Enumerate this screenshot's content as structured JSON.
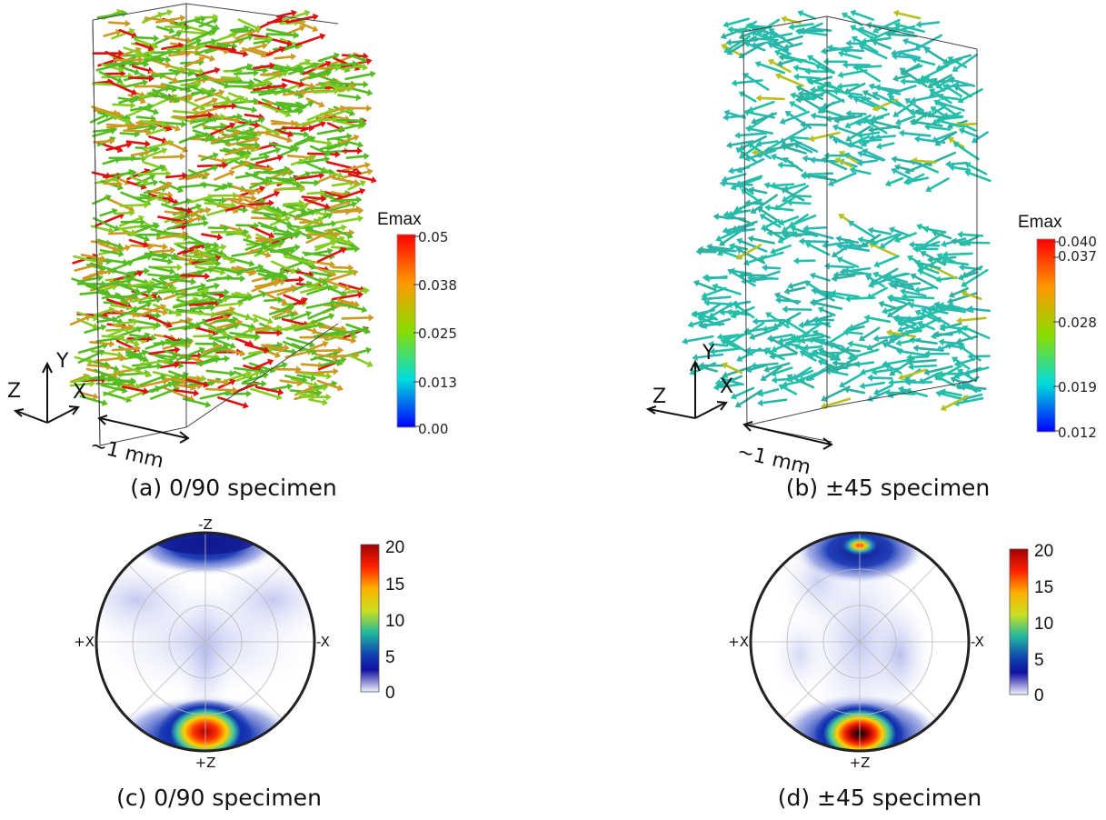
{
  "panel_a": {
    "axes": {
      "y": "Y",
      "x": "X",
      "z": "Z"
    },
    "scale_label": "~1 mm",
    "colorbar": {
      "title": "Emax",
      "min": 0.0,
      "max": 0.05,
      "ticks": [
        "0.05",
        "0.038",
        "0.025",
        "0.013",
        "0.00"
      ],
      "colors": [
        "#ff0000",
        "#ff9900",
        "#88dd00",
        "#00dddd",
        "#0000ff"
      ]
    },
    "caption": "(a) 0/90 specimen"
  },
  "panel_b": {
    "axes": {
      "y": "Y",
      "x": "X",
      "z": "Z"
    },
    "scale_label": "~1 mm",
    "colorbar": {
      "title": "Emax",
      "min": 0.012,
      "max": 0.04,
      "ticks": [
        "0.040",
        "0.037",
        "0.028",
        "0.019",
        "0.012"
      ],
      "colors": [
        "#ff0000",
        "#ff9900",
        "#88dd00",
        "#00dddd",
        "#0000ff"
      ]
    },
    "caption": "(b) ±45 specimen"
  },
  "panel_c": {
    "labels": {
      "top": "-Z",
      "bottom": "+Z",
      "left": "+X",
      "right": "-X"
    },
    "colorbar": {
      "ticks": [
        "20",
        "15",
        "10",
        "5",
        "0"
      ],
      "min": 0,
      "max": 20
    },
    "caption": "(c) 0/90 specimen"
  },
  "panel_d": {
    "labels": {
      "bottom": "+Z",
      "left": "+X",
      "right": "-X"
    },
    "colorbar": {
      "ticks": [
        "20",
        "15",
        "10",
        "5",
        "0"
      ],
      "min": 0,
      "max": 20
    },
    "caption": "(d) ±45 specimen"
  }
}
